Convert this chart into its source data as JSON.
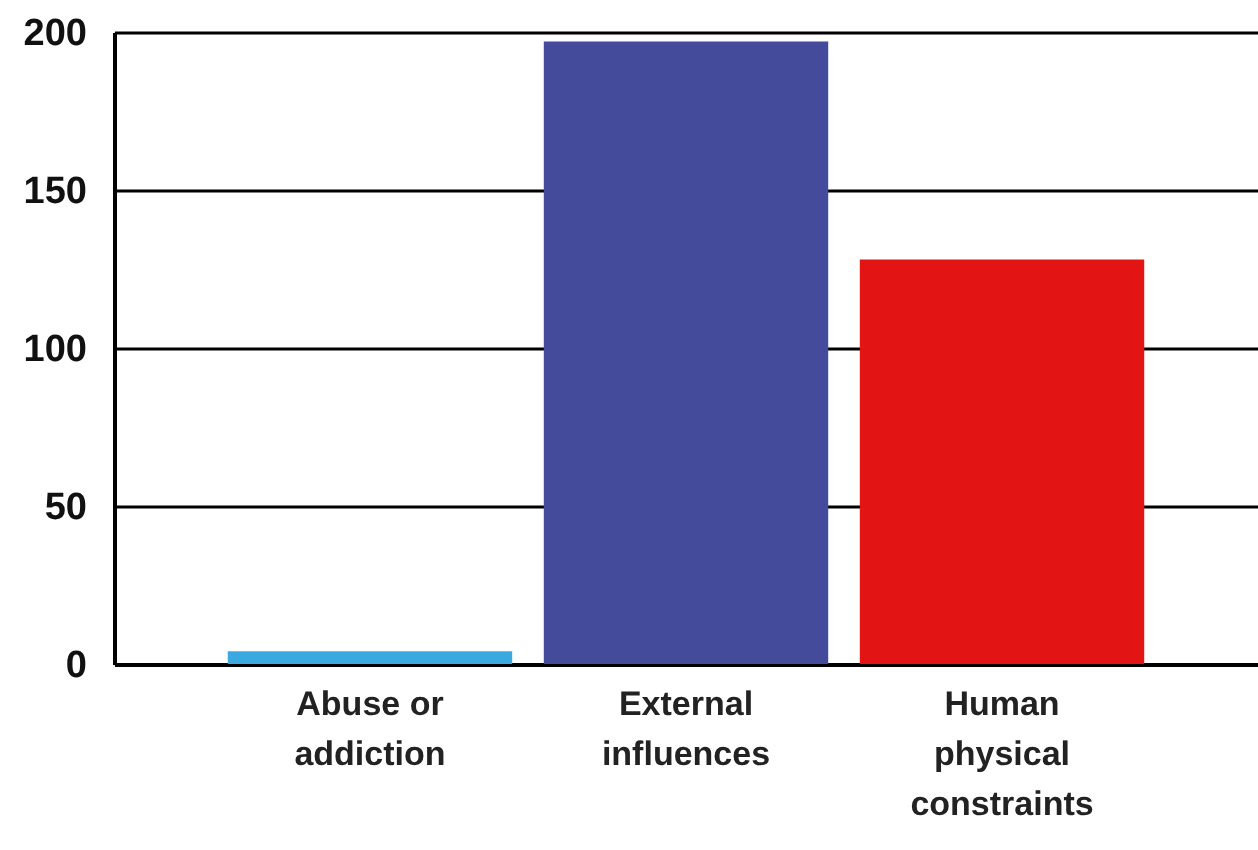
{
  "chart_data": {
    "type": "bar",
    "categories": [
      "Abuse or\naddiction",
      "External\ninfluences",
      "Human\nphysical\nconstraints"
    ],
    "values": [
      4,
      197,
      128
    ],
    "colors": [
      "#3aa9e0",
      "#434b9a",
      "#e31414"
    ],
    "ylim": [
      0,
      200
    ],
    "yticks": [
      0,
      50,
      100,
      150,
      200
    ],
    "grid": "y"
  }
}
